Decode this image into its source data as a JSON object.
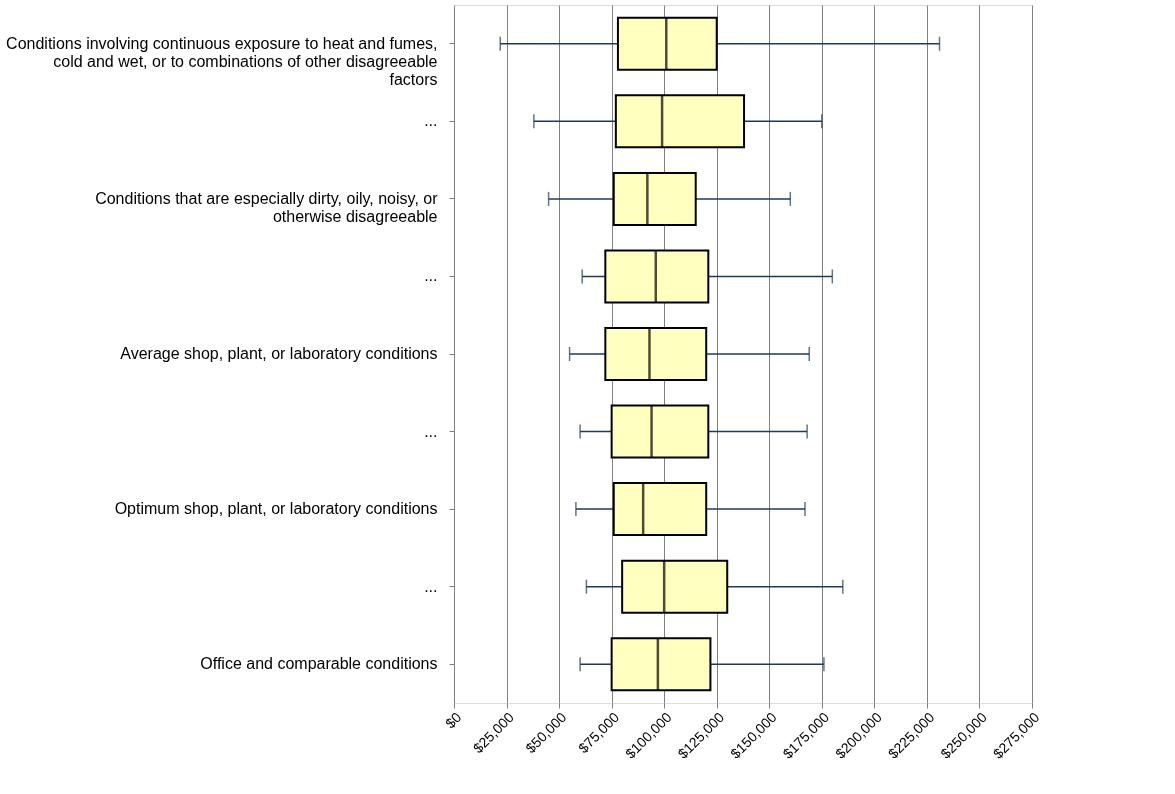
{
  "chart_data": {
    "type": "box",
    "orientation": "horizontal",
    "color": "#ffffc0",
    "categories": [
      "Conditions involving continuous exposure to heat and fumes, cold and wet, or to combinations of other disagreeable factors",
      "...",
      "Conditions that are especially dirty, oily, noisy, or otherwise disagreeable",
      "...",
      "Average shop, plant, or laboratory conditions",
      "...",
      "Optimum shop, plant, or laboratory conditions",
      "...",
      "Office and comparable conditions"
    ],
    "boxes": [
      {
        "low": 22000,
        "q1": 78000,
        "median": 101000,
        "q3": 125000,
        "high": 231000
      },
      {
        "low": 38000,
        "q1": 77000,
        "median": 99000,
        "q3": 138000,
        "high": 175000
      },
      {
        "low": 45000,
        "q1": 76000,
        "median": 92000,
        "q3": 115000,
        "high": 160000
      },
      {
        "low": 61000,
        "q1": 72000,
        "median": 96000,
        "q3": 121000,
        "high": 180000
      },
      {
        "low": 55000,
        "q1": 72000,
        "median": 93000,
        "q3": 120000,
        "high": 169000
      },
      {
        "low": 60000,
        "q1": 75000,
        "median": 94000,
        "q3": 121000,
        "high": 168000
      },
      {
        "low": 58000,
        "q1": 76000,
        "median": 90000,
        "q3": 120000,
        "high": 167000
      },
      {
        "low": 63000,
        "q1": 80000,
        "median": 100000,
        "q3": 130000,
        "high": 185000
      },
      {
        "low": 60000,
        "q1": 75000,
        "median": 97000,
        "q3": 122000,
        "high": 176000
      }
    ],
    "xlim": [
      0,
      275000
    ],
    "xticks": [
      {
        "value": 0,
        "label": "$0"
      },
      {
        "value": 25000,
        "label": "$25,000"
      },
      {
        "value": 50000,
        "label": "$50,000"
      },
      {
        "value": 75000,
        "label": "$75,000"
      },
      {
        "value": 100000,
        "label": "$100,000"
      },
      {
        "value": 125000,
        "label": "$125,000"
      },
      {
        "value": 150000,
        "label": "$150,000"
      },
      {
        "value": 175000,
        "label": "$175,000"
      },
      {
        "value": 200000,
        "label": "$200,000"
      },
      {
        "value": 225000,
        "label": "$225,000"
      },
      {
        "value": 250000,
        "label": "$250,000"
      },
      {
        "value": 275000,
        "label": "$275,000"
      }
    ],
    "grid": "x"
  }
}
